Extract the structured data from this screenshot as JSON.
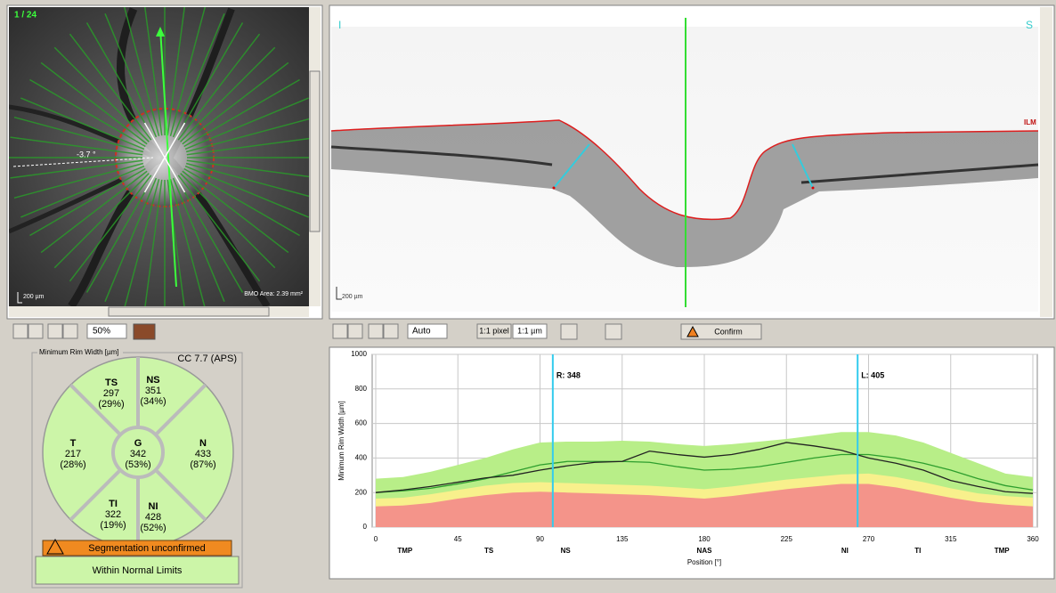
{
  "fundus": {
    "frame": "1 / 24",
    "angle": "-3.7 °",
    "scale": "200 µm",
    "bmo_area": "BMO Area: 2.39 mm²"
  },
  "bscan": {
    "left": "I",
    "right": "S",
    "layer": "ILM",
    "scale": "200 µm"
  },
  "toolbar": {
    "zoom": "50%",
    "mode": "Auto",
    "pixel": "1:1 pixel",
    "micron": "1:1 µm",
    "confirm": "Confirm"
  },
  "rim_width": {
    "title": "Minimum Rim Width [µm]",
    "cc": "CC 7.7 (APS)",
    "sectors": [
      {
        "name": "TS",
        "value": 297,
        "percent": "(29%)"
      },
      {
        "name": "NS",
        "value": 351,
        "percent": "(34%)"
      },
      {
        "name": "T",
        "value": 217,
        "percent": "(28%)"
      },
      {
        "name": "G",
        "value": 342,
        "percent": "(53%)"
      },
      {
        "name": "N",
        "value": 433,
        "percent": "(87%)"
      },
      {
        "name": "TI",
        "value": 322,
        "percent": "(19%)"
      },
      {
        "name": "NI",
        "value": 428,
        "percent": "(52%)"
      }
    ],
    "status": "Segmentation unconfirmed",
    "classification": "Within Normal Limits"
  },
  "chart_data": {
    "type": "line",
    "y_label": "Minimum Rim Width [µm]",
    "x_label": "Position [°]",
    "x": [
      0,
      15,
      30,
      45,
      60,
      75,
      90,
      105,
      120,
      135,
      150,
      165,
      180,
      195,
      210,
      225,
      240,
      255,
      270,
      285,
      300,
      315,
      330,
      345,
      360
    ],
    "series": [
      {
        "color": "#b8ee88",
        "fill": true,
        "values": [
          280,
          290,
          320,
          360,
          400,
          450,
          490,
          495,
          495,
          500,
          495,
          480,
          470,
          480,
          495,
          510,
          530,
          550,
          550,
          530,
          490,
          430,
          370,
          310,
          290
        ]
      },
      {
        "color": "#f8f08c",
        "fill": true,
        "values": [
          165,
          170,
          190,
          215,
          240,
          255,
          260,
          255,
          250,
          245,
          240,
          230,
          220,
          235,
          255,
          275,
          290,
          305,
          310,
          290,
          260,
          225,
          195,
          180,
          170
        ]
      },
      {
        "color": "#f4948a",
        "fill": true,
        "values": [
          120,
          125,
          140,
          165,
          185,
          200,
          205,
          200,
          195,
          190,
          185,
          175,
          165,
          180,
          200,
          220,
          235,
          250,
          250,
          230,
          200,
          170,
          145,
          130,
          120
        ]
      },
      {
        "color": "#2e9e2e",
        "fill": false,
        "values": [
          200,
          210,
          225,
          250,
          280,
          320,
          360,
          380,
          380,
          380,
          375,
          350,
          330,
          335,
          350,
          375,
          400,
          420,
          420,
          400,
          370,
          330,
          280,
          240,
          215
        ]
      },
      {
        "color": "#222222",
        "fill": false,
        "values": [
          200,
          215,
          235,
          260,
          285,
          300,
          330,
          355,
          375,
          380,
          440,
          420,
          405,
          420,
          450,
          490,
          470,
          445,
          400,
          370,
          330,
          270,
          235,
          205,
          195
        ]
      }
    ],
    "markers": [
      {
        "x": 97,
        "label": "R: 348",
        "color": "#33ccee"
      },
      {
        "x": 264,
        "label": "L: 405",
        "color": "#33ccee"
      }
    ],
    "xlim": [
      0,
      360
    ],
    "ylim": [
      0,
      1000
    ],
    "xticks": [
      0,
      45,
      90,
      135,
      180,
      225,
      270,
      315,
      360
    ],
    "yticks": [
      0,
      200,
      400,
      600,
      800,
      1000
    ],
    "grid": true,
    "sector_labels": [
      {
        "value": 16,
        "label": "TMP"
      },
      {
        "value": 62,
        "label": "TS"
      },
      {
        "value": 104,
        "label": "NS"
      },
      {
        "value": 180,
        "label": "NAS"
      },
      {
        "value": 257,
        "label": "NI"
      },
      {
        "value": 297,
        "label": "TI"
      },
      {
        "value": 343,
        "label": "TMP"
      }
    ]
  }
}
